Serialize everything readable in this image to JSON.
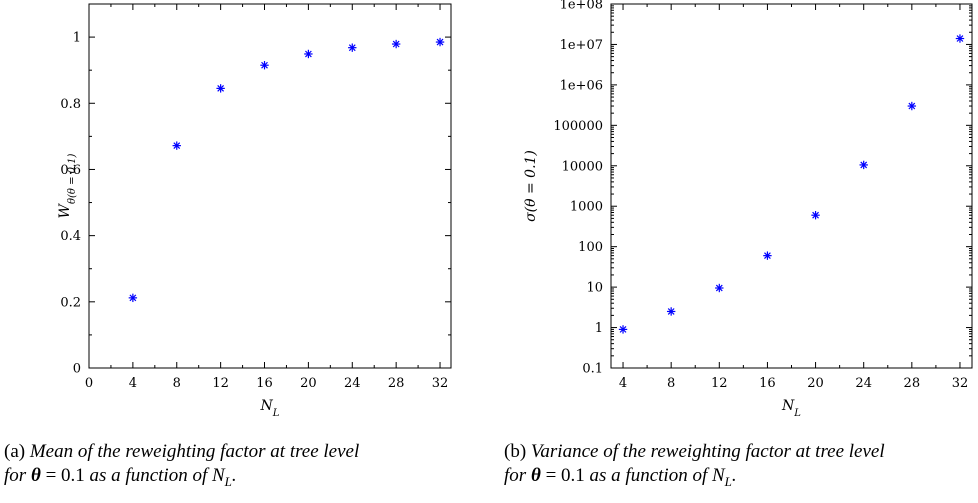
{
  "chart_data": [
    {
      "type": "scatter",
      "title": "",
      "xlabel": "N_L",
      "ylabel": "W_θ(θ = 0.1)",
      "xlim": [
        0,
        33
      ],
      "ylim": [
        0,
        1.1
      ],
      "yscale": "linear",
      "xticks": [
        0,
        4,
        8,
        12,
        16,
        20,
        24,
        28,
        32
      ],
      "yticks": [
        0,
        0.2,
        0.4,
        0.6,
        0.8,
        1
      ],
      "ytick_labels": [
        "0",
        "0.2",
        "0.4",
        "0.6",
        "0.8",
        "1"
      ],
      "marker": "asterisk",
      "marker_color": "#0000ff",
      "grid": false,
      "series": [
        {
          "x": [
            4,
            8,
            12,
            16,
            20,
            24,
            28,
            32
          ],
          "values": [
            0.212,
            0.672,
            0.845,
            0.915,
            0.949,
            0.968,
            0.979,
            0.985
          ]
        }
      ]
    },
    {
      "type": "scatter",
      "title": "",
      "xlabel": "N_L",
      "ylabel": "σ(θ = 0.1)",
      "xlim": [
        3,
        33
      ],
      "ylim": [
        0.1,
        100000000
      ],
      "yscale": "log",
      "xticks": [
        4,
        8,
        12,
        16,
        20,
        24,
        28,
        32
      ],
      "yticks": [
        0.1,
        1,
        10,
        100,
        1000,
        10000,
        100000,
        1000000,
        10000000,
        100000000
      ],
      "ytick_labels": [
        "0.1",
        "1",
        "10",
        "100",
        "1000",
        "10000",
        "100000",
        "1e+06",
        "1e+07",
        "1e+08"
      ],
      "marker": "asterisk",
      "marker_color": "#0000ff",
      "grid": false,
      "series": [
        {
          "x": [
            4,
            8,
            12,
            16,
            20,
            24,
            28,
            32
          ],
          "values": [
            0.9,
            2.5,
            9.5,
            60,
            600,
            10500,
            300000,
            14000000
          ]
        }
      ]
    }
  ],
  "captions": [
    {
      "tag": "(a)",
      "line1": "Mean of the reweighting factor at tree level",
      "line2_prefix": "for",
      "theta": "θ",
      "equals": "= 0.1",
      "line2_middle": "as a function of",
      "var": "N",
      "var_sub": "L",
      "end": "."
    },
    {
      "tag": "(b)",
      "line1": "Variance of the reweighting factor at tree level",
      "line2_prefix": "for",
      "theta": "θ",
      "equals": "= 0.1",
      "line2_middle": "as a function of",
      "var": "N",
      "var_sub": "L",
      "end": "."
    }
  ]
}
